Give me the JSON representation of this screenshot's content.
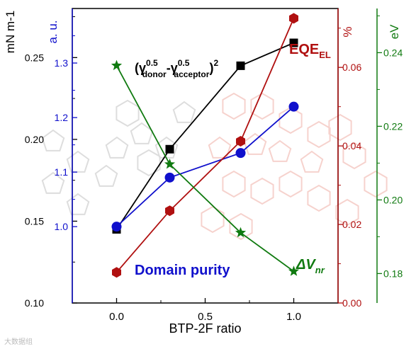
{
  "watermark": "大数据组",
  "chart_data": {
    "type": "line",
    "x": [
      0.0,
      0.3,
      0.7,
      1.0
    ],
    "xlabel": "BTP-2F ratio",
    "xlim": [
      -0.25,
      1.25
    ],
    "xticks": [
      "0.0",
      "0.5",
      "1.0"
    ],
    "grid": false,
    "series": [
      {
        "name": "(γ^0.5_donor − γ^0.5_acceptor)^2",
        "axis": "mN m-1",
        "color": "#000000",
        "marker": "square",
        "values": [
          0.145,
          0.194,
          0.245,
          0.259
        ]
      },
      {
        "name": "Domain purity",
        "axis": "a. u.",
        "color": "#1010cc",
        "marker": "circle",
        "values": [
          1.0,
          1.09,
          1.135,
          1.22
        ]
      },
      {
        "name": "EQE_EL",
        "axis": "%",
        "color": "#b01010",
        "marker": "hexagon",
        "values": [
          0.0078,
          0.0235,
          0.0412,
          0.0725
        ]
      },
      {
        "name": "ΔV_nr",
        "axis": "eV",
        "color": "#107a10",
        "marker": "star",
        "values": [
          0.2365,
          0.2097,
          0.1911,
          0.1806
        ]
      }
    ],
    "y_axes": [
      {
        "id": "mN",
        "label": "mN m-1",
        "color": "#000000",
        "range": [
          0.1,
          0.28
        ],
        "ticks": [
          "0.10",
          "0.15",
          "0.20",
          "0.25"
        ]
      },
      {
        "id": "au",
        "label": "a. u.",
        "color": "#1010cc",
        "range": [
          0.86,
          1.4
        ],
        "ticks": [
          "1.0",
          "1.1",
          "1.2",
          "1.3"
        ]
      },
      {
        "id": "pct",
        "label": "%",
        "color": "#b01010",
        "range": [
          0.0,
          0.075
        ],
        "ticks": [
          "0.00",
          "0.02",
          "0.04",
          "0.06"
        ]
      },
      {
        "id": "ev",
        "label": "eV",
        "color": "#107a10",
        "range": [
          0.172,
          0.252
        ],
        "ticks": [
          "0.18",
          "0.20",
          "0.22",
          "0.24"
        ]
      }
    ],
    "annotations": [
      {
        "text": "(γ",
        "sup1": "0.5",
        "sub1": "donor",
        "mid": "-γ",
        "sup2": "0.5",
        "sub2": "acceptor",
        "end": ")",
        "sup3": "2",
        "color": "#000000"
      },
      {
        "text": "EQE",
        "sub": "EL",
        "color": "#b01010"
      },
      {
        "text": "Domain purity",
        "color": "#1010cc"
      },
      {
        "text": "ΔV",
        "sub": "nr",
        "color": "#107a10"
      }
    ]
  }
}
